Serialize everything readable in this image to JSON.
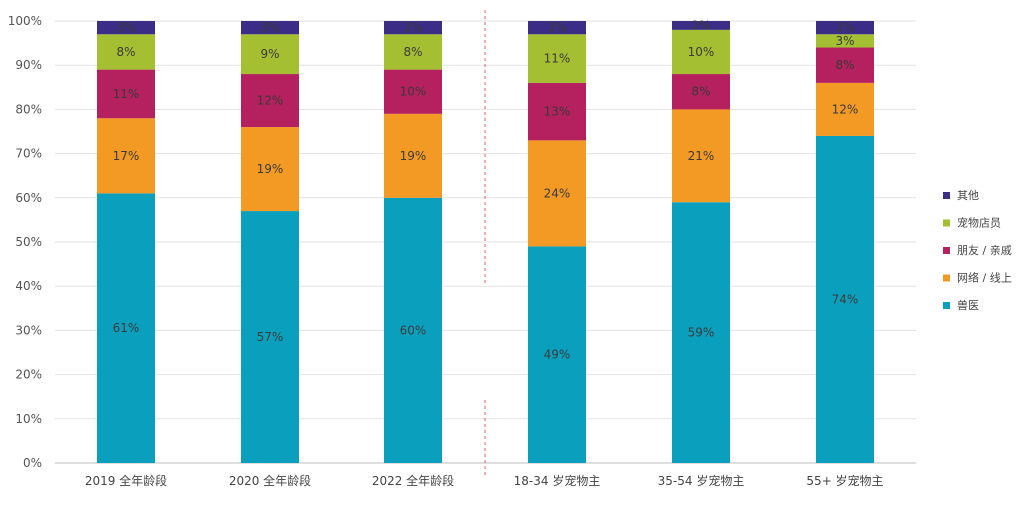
{
  "chart_data": {
    "type": "bar",
    "stacked": true,
    "ylim": [
      0,
      100
    ],
    "yticks": [
      "0%",
      "10%",
      "20%",
      "30%",
      "40%",
      "50%",
      "60%",
      "70%",
      "80%",
      "90%",
      "100%"
    ],
    "categories": [
      "2019 全年龄段",
      "2020 全年龄段",
      "2022 全年龄段",
      "18-34 岁宠物主",
      "35-54 岁宠物主",
      "55+ 岁宠物主"
    ],
    "divider_after_index": 2,
    "grid": true,
    "legend_position": "right",
    "series": [
      {
        "name": "兽医",
        "color": "#0aa0bd",
        "values": [
          61,
          57,
          60,
          49,
          59,
          74
        ],
        "labels": [
          "61%",
          "57%",
          "60%",
          "49%",
          "59%",
          "74%"
        ]
      },
      {
        "name": "网络 / 线上",
        "color": "#f39a24",
        "values": [
          17,
          19,
          19,
          24,
          21,
          12
        ],
        "labels": [
          "17%",
          "19%",
          "19%",
          "24%",
          "21%",
          "12%"
        ]
      },
      {
        "name": "朋友 / 亲戚",
        "color": "#b5215e",
        "values": [
          11,
          12,
          10,
          13,
          8,
          8
        ],
        "labels": [
          "11%",
          "12%",
          "10%",
          "13%",
          "8%",
          "8%"
        ]
      },
      {
        "name": "宠物店员",
        "color": "#a4bf32",
        "values": [
          8,
          9,
          8,
          11,
          10,
          3
        ],
        "labels": [
          "8%",
          "9%",
          "8%",
          "11%",
          "10%",
          "3%"
        ]
      },
      {
        "name": "其他",
        "color": "#3b2c86",
        "values": [
          3,
          3,
          3,
          3,
          2,
          3
        ],
        "labels": [
          "3%",
          "3%",
          "3%",
          "3%",
          "2%",
          "3%"
        ]
      }
    ]
  }
}
